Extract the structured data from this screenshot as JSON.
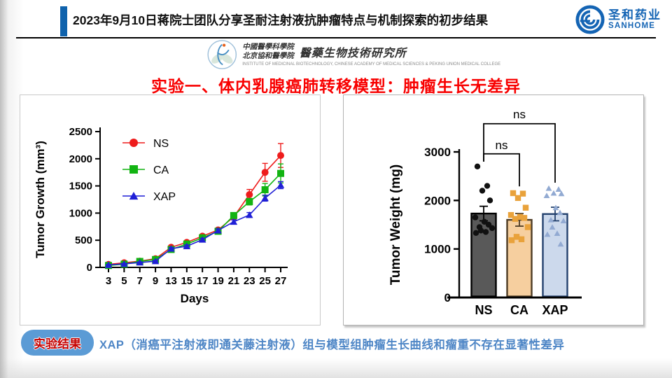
{
  "header": {
    "title": "2023年9月10日蒋院士团队分享圣耐注射液抗肿瘤特点与机制探索的初步结果",
    "logo": {
      "cn": "圣和药业",
      "en": "SANHOME",
      "color": "#1464b4"
    }
  },
  "institute": {
    "line1": "中國醫學科學院",
    "line2": "北京協和醫學院",
    "name": "醫藥生物技術研究所",
    "en": "INSTITUTE OF MEDICINAL BIOTECHNOLOGY, CHINESE ACADEMY OF MEDICAL SCIENCES & PEKING UNION MEDICAL COLLEGE"
  },
  "section": {
    "title": "实验一、体内乳腺癌肺转移模型：肿瘤生长无差异",
    "color": "#f80000"
  },
  "footer": {
    "badge": "实验结果",
    "badge_bg": "#5b9bd5",
    "text": "XAP（消癌平注射液即通关藤注射液）组与模型组肿瘤生长曲线和瘤重不存在显著性差异",
    "text_color": "#4e86c6"
  },
  "chart_data": [
    {
      "type": "line",
      "title": "",
      "xlabel": "Days",
      "ylabel": "Tumor Growth (mm³)",
      "x": [
        3,
        5,
        7,
        9,
        13,
        15,
        17,
        19,
        21,
        23,
        25,
        27
      ],
      "ylim": [
        0,
        2500
      ],
      "yticks": [
        0,
        500,
        1000,
        1500,
        2000,
        2500
      ],
      "legend_position": "top-left-inside",
      "grid": false,
      "series": [
        {
          "name": "NS",
          "color": "#ee1c1c",
          "marker": "circle",
          "values": [
            55,
            85,
            115,
            160,
            370,
            460,
            575,
            690,
            930,
            1340,
            1750,
            2060
          ],
          "errors": [
            10,
            12,
            15,
            18,
            25,
            28,
            30,
            30,
            45,
            95,
            165,
            220
          ]
        },
        {
          "name": "CA",
          "color": "#12b412",
          "marker": "square",
          "values": [
            35,
            60,
            110,
            145,
            330,
            430,
            545,
            665,
            955,
            1210,
            1430,
            1730
          ],
          "errors": [
            8,
            10,
            12,
            15,
            22,
            25,
            28,
            28,
            40,
            60,
            115,
            175
          ]
        },
        {
          "name": "XAP",
          "color": "#1f1fd6",
          "marker": "triangle",
          "values": [
            45,
            65,
            90,
            115,
            345,
            390,
            510,
            680,
            840,
            965,
            1275,
            1515
          ],
          "errors": [
            8,
            10,
            12,
            15,
            20,
            22,
            25,
            28,
            35,
            45,
            55,
            65
          ]
        }
      ]
    },
    {
      "type": "bar",
      "title": "",
      "xlabel": "",
      "ylabel": "Tumor Weight (mg)",
      "categories": [
        "NS",
        "CA",
        "XAP"
      ],
      "values": [
        1730,
        1600,
        1720
      ],
      "errors": [
        150,
        130,
        140
      ],
      "ylim": [
        0,
        3000
      ],
      "yticks": [
        0,
        1000,
        2000,
        3000
      ],
      "grid": false,
      "bar_styles": [
        {
          "fill": "#595959",
          "stroke": "#000000",
          "point_color": "#111111",
          "point_marker": "circle"
        },
        {
          "fill": "#f6cf9f",
          "stroke": "#4d3b24",
          "point_color": "#e9a23b",
          "point_marker": "square"
        },
        {
          "fill": "#ccd9ec",
          "stroke": "#24426e",
          "point_color": "#92aad2",
          "point_marker": "triangle"
        }
      ],
      "points": [
        [
          2700,
          2300,
          2200,
          2000,
          1650,
          1560,
          1500,
          1450,
          1430,
          1380,
          1350,
          1330
        ],
        [
          2150,
          2140,
          2050,
          1850,
          1700,
          1660,
          1640,
          1620,
          1450,
          1250,
          1200,
          1180
        ],
        [
          2250,
          2230,
          2150,
          2140,
          2100,
          1850,
          1750,
          1600,
          1580,
          1450,
          1320,
          1300,
          1100
        ]
      ],
      "comparisons": [
        {
          "a": 0,
          "b": 1,
          "label": "ns",
          "y": 2960,
          "a_drop": 2800,
          "b_drop": 2290,
          "label_y": 3060
        },
        {
          "a": 0,
          "b": 2,
          "label": "ns",
          "y": 3580,
          "a_drop": 2800,
          "b_drop": 2365,
          "label_y": 3690
        }
      ]
    }
  ]
}
